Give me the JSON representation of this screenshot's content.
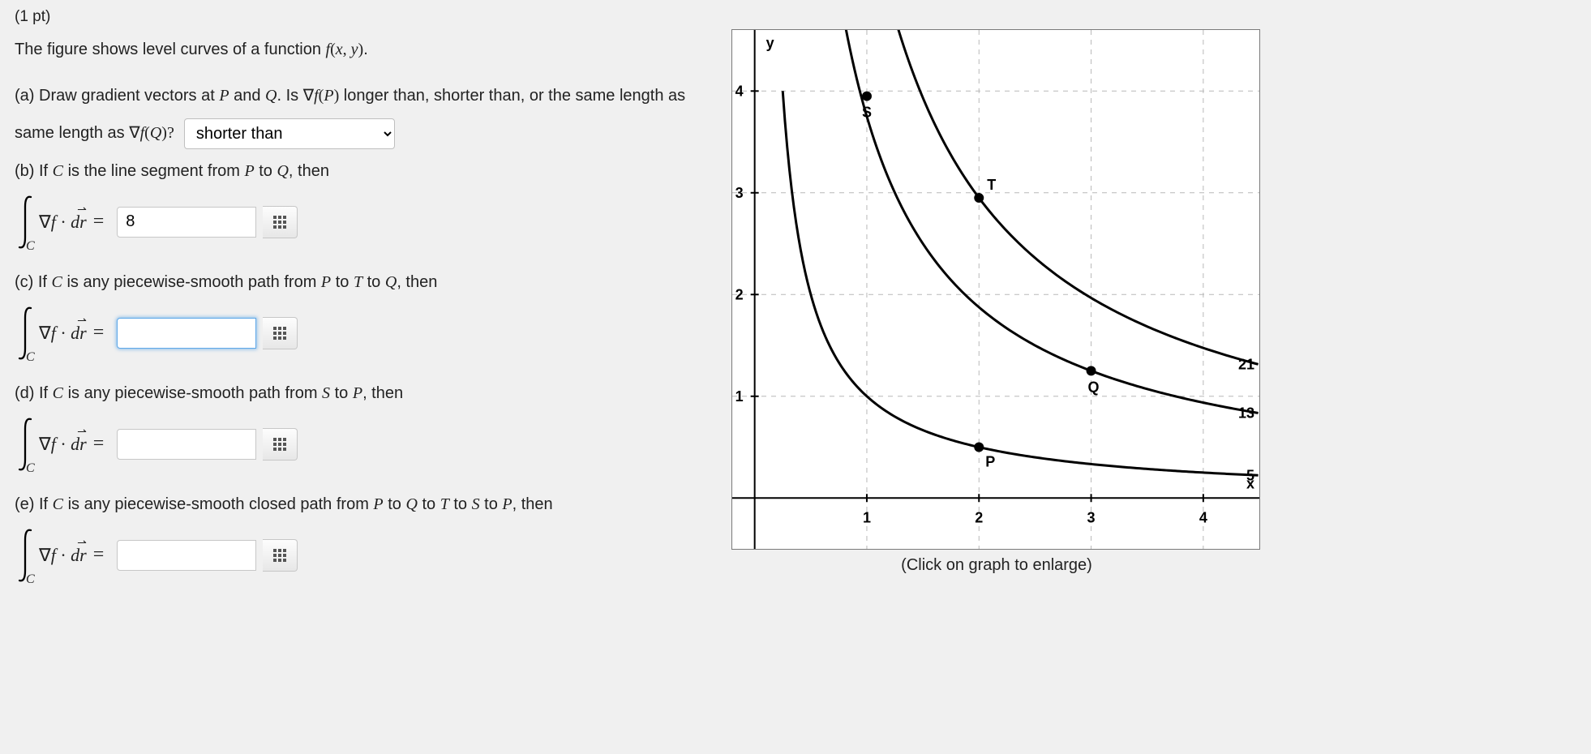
{
  "points_label": "(1 pt)",
  "intro": "The figure shows level curves of a function ",
  "func_html": "f (x, y).",
  "part_a": {
    "text_before": "(a) Draw gradient vectors at ",
    "P": "P",
    "and": " and ",
    "Q": "Q",
    "text_after1": ". Is ",
    "gradP": "∇f (P)",
    "text_after2": " longer than, shorter than, or the same length as ",
    "gradQ": "∇f (Q)?",
    "select_value": "shorter than",
    "options": [
      "?",
      "longer than",
      "shorter than",
      "the same length as"
    ]
  },
  "part_b": {
    "text": "(b) If C is the line segment from P to Q, then",
    "value": "8"
  },
  "part_c": {
    "text": "(c) If C is any piecewise-smooth path from P to T to Q, then",
    "value": ""
  },
  "part_d": {
    "text": "(d) If C is any piecewise-smooth path from S to P, then",
    "value": ""
  },
  "part_e": {
    "text": "(e) If C is any piecewise-smooth closed path from P to Q to T to S to P, then",
    "value": ""
  },
  "integral_expr": "∇f · d r⃗  =",
  "graph": {
    "caption": "(Click on graph to enlarge)",
    "x_ticks": [
      1,
      2,
      3,
      4
    ],
    "y_ticks": [
      1,
      2,
      3,
      4
    ],
    "y_axis_label": "y",
    "x_axis_label": "x",
    "level_values": [
      5,
      13,
      21
    ],
    "points": {
      "P": {
        "x": 2.0,
        "y": 0.5,
        "label": "P"
      },
      "Q": {
        "x": 3.0,
        "y": 1.25,
        "label": "Q"
      },
      "T": {
        "x": 2.0,
        "y": 2.95,
        "label": "T"
      },
      "S": {
        "x": 1.0,
        "y": 3.95,
        "label": "S"
      }
    },
    "x_range": [
      -0.2,
      4.5
    ],
    "y_range": [
      -0.5,
      4.6
    ],
    "curve_color": "#000000",
    "grid_color": "#b8b8b8",
    "axis_color": "#000000",
    "point_radius": 6
  }
}
